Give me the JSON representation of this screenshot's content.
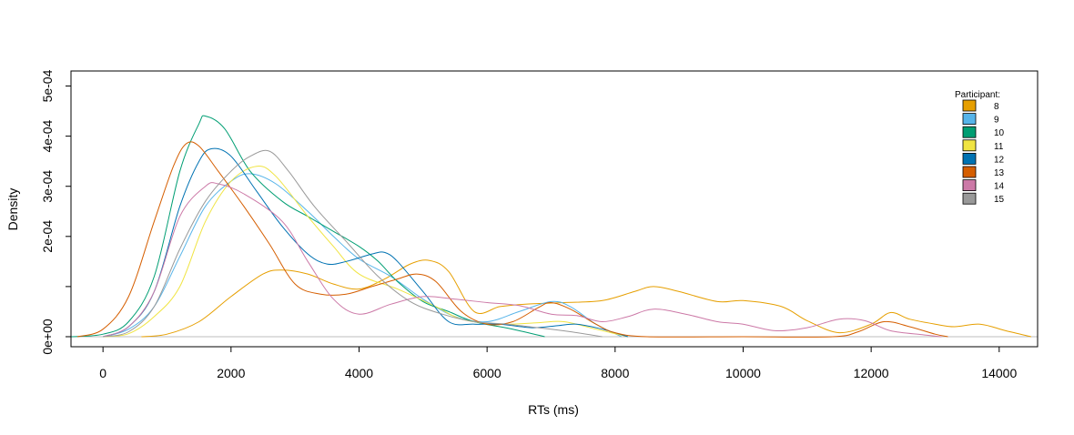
{
  "chart_data": {
    "type": "line",
    "title": "",
    "xlabel": "RTs (ms)",
    "ylabel": "Density",
    "xlim": [
      -500,
      14600
    ],
    "ylim": [
      -2e-05,
      0.00053
    ],
    "x_ticks": [
      0,
      2000,
      4000,
      6000,
      8000,
      10000,
      12000,
      14000
    ],
    "x_tick_labels": [
      "0",
      "2000",
      "4000",
      "6000",
      "8000",
      "10000",
      "12000",
      "14000"
    ],
    "y_ticks": [
      0,
      0.0001,
      0.0002,
      0.0003,
      0.0004,
      0.0005
    ],
    "y_tick_labels": [
      "0e+00",
      "",
      "2e-04",
      "3e-04",
      "4e-04",
      "5e-04"
    ],
    "grid": false,
    "baseline": 0,
    "legend": {
      "title": "Participant:",
      "position": "top-right"
    },
    "series": [
      {
        "name": "8",
        "color": "#E69F00",
        "points": [
          [
            600,
            0
          ],
          [
            1000,
            5e-06
          ],
          [
            1500,
            3e-05
          ],
          [
            2000,
            8e-05
          ],
          [
            2500,
            0.000125
          ],
          [
            2800,
            0.000133
          ],
          [
            3200,
            0.000125
          ],
          [
            3600,
            0.000105
          ],
          [
            4000,
            9.5e-05
          ],
          [
            4400,
            0.000115
          ],
          [
            4800,
            0.000145
          ],
          [
            5100,
            0.000152
          ],
          [
            5400,
            0.00013
          ],
          [
            5800,
            5e-05
          ],
          [
            6200,
            6e-05
          ],
          [
            6600,
            6.5e-05
          ],
          [
            7200,
            6.8e-05
          ],
          [
            7800,
            7.2e-05
          ],
          [
            8300,
            9e-05
          ],
          [
            8600,
            0.0001
          ],
          [
            9000,
            9e-05
          ],
          [
            9600,
            7e-05
          ],
          [
            10000,
            7.2e-05
          ],
          [
            10600,
            6e-05
          ],
          [
            11000,
            3.2e-05
          ],
          [
            11500,
            8e-06
          ],
          [
            12000,
            2.5e-05
          ],
          [
            12300,
            4.8e-05
          ],
          [
            12600,
            3.5e-05
          ],
          [
            13000,
            2.5e-05
          ],
          [
            13300,
            2e-05
          ],
          [
            13700,
            2.5e-05
          ],
          [
            14100,
            1.2e-05
          ],
          [
            14500,
            0
          ]
        ]
      },
      {
        "name": "9",
        "color": "#56B4E9",
        "points": [
          [
            0,
            0
          ],
          [
            400,
            1.5e-05
          ],
          [
            800,
            6e-05
          ],
          [
            1200,
            0.00016
          ],
          [
            1600,
            0.00026
          ],
          [
            2000,
            0.00031
          ],
          [
            2300,
            0.000325
          ],
          [
            2700,
            0.000305
          ],
          [
            3200,
            0.00025
          ],
          [
            3600,
            0.0002
          ],
          [
            4000,
            0.000155
          ],
          [
            4500,
            0.00012
          ],
          [
            5000,
            7.5e-05
          ],
          [
            5500,
            4e-05
          ],
          [
            6000,
            3e-05
          ],
          [
            6500,
            5e-05
          ],
          [
            7000,
            7e-05
          ],
          [
            7300,
            6e-05
          ],
          [
            7700,
            2.5e-05
          ],
          [
            8100,
            0
          ]
        ]
      },
      {
        "name": "10",
        "color": "#009E73",
        "points": [
          [
            -500,
            0
          ],
          [
            0,
            5e-06
          ],
          [
            400,
            3e-05
          ],
          [
            800,
            0.00012
          ],
          [
            1200,
            0.00033
          ],
          [
            1500,
            0.000425
          ],
          [
            1600,
            0.00044
          ],
          [
            1900,
            0.000415
          ],
          [
            2300,
            0.00033
          ],
          [
            2800,
            0.00027
          ],
          [
            3200,
            0.00024
          ],
          [
            3600,
            0.00021
          ],
          [
            4000,
            0.00018
          ],
          [
            4300,
            0.00015
          ],
          [
            4600,
            0.00011
          ],
          [
            5000,
            7e-05
          ],
          [
            5400,
            5e-05
          ],
          [
            5800,
            3e-05
          ],
          [
            6400,
            1.5e-05
          ],
          [
            6900,
            0
          ]
        ]
      },
      {
        "name": "11",
        "color": "#F0E442",
        "points": [
          [
            0,
            0
          ],
          [
            400,
            6e-06
          ],
          [
            800,
            4e-05
          ],
          [
            1200,
            0.0001
          ],
          [
            1600,
            0.00023
          ],
          [
            2000,
            0.00031
          ],
          [
            2400,
            0.00034
          ],
          [
            2700,
            0.00032
          ],
          [
            3200,
            0.00024
          ],
          [
            3600,
            0.00018
          ],
          [
            4000,
            0.000125
          ],
          [
            4600,
            9.5e-05
          ],
          [
            5200,
            6e-05
          ],
          [
            5600,
            3.5e-05
          ],
          [
            6200,
            2.5e-05
          ],
          [
            6800,
            2.8e-05
          ],
          [
            7200,
            3e-05
          ],
          [
            7700,
            1.5e-05
          ],
          [
            8200,
            0
          ]
        ]
      },
      {
        "name": "12",
        "color": "#0072B2",
        "points": [
          [
            0,
            0
          ],
          [
            400,
            2e-05
          ],
          [
            800,
            9e-05
          ],
          [
            1200,
            0.00026
          ],
          [
            1500,
            0.00035
          ],
          [
            1700,
            0.000375
          ],
          [
            2000,
            0.00036
          ],
          [
            2400,
            0.00029
          ],
          [
            2800,
            0.00022
          ],
          [
            3200,
            0.000165
          ],
          [
            3500,
            0.000145
          ],
          [
            3800,
            0.00015
          ],
          [
            4200,
            0.000165
          ],
          [
            4400,
            0.000168
          ],
          [
            4600,
            0.00015
          ],
          [
            5000,
            9e-05
          ],
          [
            5400,
            3e-05
          ],
          [
            5800,
            2.5e-05
          ],
          [
            6200,
            2.5e-05
          ],
          [
            6700,
            1.8e-05
          ],
          [
            7100,
            2.2e-05
          ],
          [
            7400,
            2.5e-05
          ],
          [
            7800,
            1.5e-05
          ],
          [
            8200,
            0
          ]
        ]
      },
      {
        "name": "13",
        "color": "#D55E00",
        "points": [
          [
            -400,
            0
          ],
          [
            0,
            1.5e-05
          ],
          [
            400,
            8e-05
          ],
          [
            800,
            0.00023
          ],
          [
            1100,
            0.00034
          ],
          [
            1300,
            0.000385
          ],
          [
            1500,
            0.00038
          ],
          [
            1800,
            0.00033
          ],
          [
            2200,
            0.00026
          ],
          [
            2600,
            0.000185
          ],
          [
            3000,
            0.000105
          ],
          [
            3400,
            8.5e-05
          ],
          [
            3800,
            8.5e-05
          ],
          [
            4200,
            0.0001
          ],
          [
            4600,
            0.000115
          ],
          [
            4900,
            0.000125
          ],
          [
            5200,
            0.00011
          ],
          [
            5600,
            5e-05
          ],
          [
            6000,
            2.5e-05
          ],
          [
            6400,
            3e-05
          ],
          [
            6800,
            5.8e-05
          ],
          [
            7000,
            6.8e-05
          ],
          [
            7300,
            5.5e-05
          ],
          [
            7700,
            2.5e-05
          ],
          [
            8000,
            8e-06
          ],
          [
            8500,
            0
          ],
          [
            10000,
            0
          ],
          [
            11400,
            0
          ],
          [
            11800,
            1e-05
          ],
          [
            12200,
            3e-05
          ],
          [
            12600,
            2e-05
          ],
          [
            13000,
            5e-06
          ],
          [
            13200,
            0
          ]
        ]
      },
      {
        "name": "14",
        "color": "#CC79A7",
        "points": [
          [
            0,
            0
          ],
          [
            400,
            2e-05
          ],
          [
            800,
            9e-05
          ],
          [
            1200,
            0.00024
          ],
          [
            1600,
            0.0003
          ],
          [
            1800,
            0.000305
          ],
          [
            2200,
            0.000285
          ],
          [
            2800,
            0.00023
          ],
          [
            3200,
            0.00015
          ],
          [
            3600,
            7.5e-05
          ],
          [
            4000,
            4.5e-05
          ],
          [
            4500,
            6.5e-05
          ],
          [
            5000,
            8e-05
          ],
          [
            5500,
            7.5e-05
          ],
          [
            6000,
            6.8e-05
          ],
          [
            6500,
            6.2e-05
          ],
          [
            7000,
            4.5e-05
          ],
          [
            7400,
            4.2e-05
          ],
          [
            7800,
            3e-05
          ],
          [
            8200,
            4e-05
          ],
          [
            8600,
            5.5e-05
          ],
          [
            9100,
            4.5e-05
          ],
          [
            9600,
            3e-05
          ],
          [
            10000,
            2.5e-05
          ],
          [
            10500,
            1.2e-05
          ],
          [
            11000,
            1.8e-05
          ],
          [
            11500,
            3.5e-05
          ],
          [
            11900,
            3.2e-05
          ],
          [
            12300,
            1.2e-05
          ],
          [
            12800,
            4e-06
          ],
          [
            13100,
            0
          ]
        ]
      },
      {
        "name": "15",
        "color": "#999999",
        "points": [
          [
            0,
            0
          ],
          [
            400,
            1e-05
          ],
          [
            800,
            6e-05
          ],
          [
            1200,
            0.000175
          ],
          [
            1600,
            0.00027
          ],
          [
            2000,
            0.00033
          ],
          [
            2300,
            0.00036
          ],
          [
            2600,
            0.00037
          ],
          [
            2900,
            0.00033
          ],
          [
            3300,
            0.00026
          ],
          [
            3800,
            0.00019
          ],
          [
            4300,
            0.00012
          ],
          [
            4800,
            7e-05
          ],
          [
            5300,
            4.5e-05
          ],
          [
            5800,
            3e-05
          ],
          [
            6300,
            2.5e-05
          ],
          [
            6800,
            1.8e-05
          ],
          [
            7300,
            1e-05
          ],
          [
            7800,
            0
          ]
        ]
      }
    ]
  }
}
